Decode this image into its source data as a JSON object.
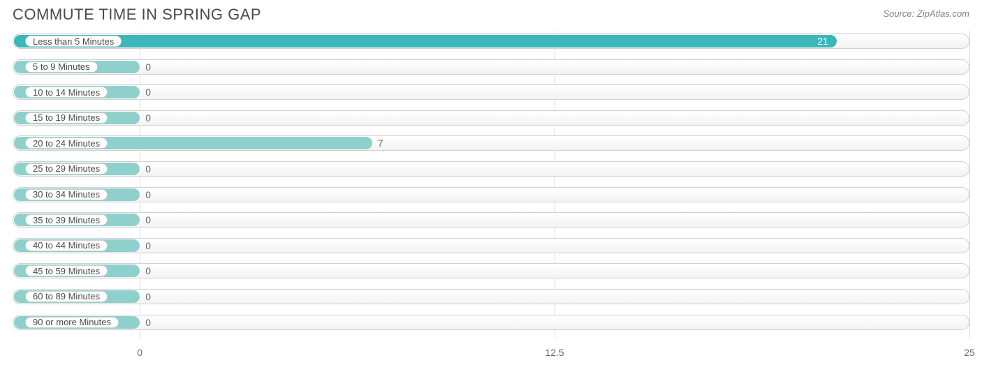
{
  "title": "COMMUTE TIME IN SPRING GAP",
  "source": "Source: ZipAtlas.com",
  "chart": {
    "type": "bar-horizontal",
    "xmin": 0,
    "xmax": 25,
    "zero_offset_pct": 13.3,
    "ticks": [
      {
        "value": 0,
        "label": "0"
      },
      {
        "value": 12.5,
        "label": "12.5"
      },
      {
        "value": 25,
        "label": "25"
      }
    ],
    "grid_color": "#d9d9d9",
    "track_border": "#d0d0d0",
    "track_bg_top": "#ffffff",
    "track_bg_bot": "#f3f3f3",
    "label_text_color": "#4a4a4a",
    "value_text_color": "#6a6a6a",
    "value_in_text_color": "#ffffff",
    "primary_fill": "#3bb6b9",
    "secondary_fill": "#8fd0cd",
    "series": [
      {
        "label": "Less than 5 Minutes",
        "value": 21,
        "color": "#3bb6b9",
        "value_inside": true
      },
      {
        "label": "5 to 9 Minutes",
        "value": 0,
        "color": "#8fd0cd",
        "value_inside": false
      },
      {
        "label": "10 to 14 Minutes",
        "value": 0,
        "color": "#8fd0cd",
        "value_inside": false
      },
      {
        "label": "15 to 19 Minutes",
        "value": 0,
        "color": "#8fd0cd",
        "value_inside": false
      },
      {
        "label": "20 to 24 Minutes",
        "value": 7,
        "color": "#8fd0cd",
        "value_inside": false
      },
      {
        "label": "25 to 29 Minutes",
        "value": 0,
        "color": "#8fd0cd",
        "value_inside": false
      },
      {
        "label": "30 to 34 Minutes",
        "value": 0,
        "color": "#8fd0cd",
        "value_inside": false
      },
      {
        "label": "35 to 39 Minutes",
        "value": 0,
        "color": "#8fd0cd",
        "value_inside": false
      },
      {
        "label": "40 to 44 Minutes",
        "value": 0,
        "color": "#8fd0cd",
        "value_inside": false
      },
      {
        "label": "45 to 59 Minutes",
        "value": 0,
        "color": "#8fd0cd",
        "value_inside": false
      },
      {
        "label": "60 to 89 Minutes",
        "value": 0,
        "color": "#8fd0cd",
        "value_inside": false
      },
      {
        "label": "90 or more Minutes",
        "value": 0,
        "color": "#8fd0cd",
        "value_inside": false
      }
    ]
  }
}
